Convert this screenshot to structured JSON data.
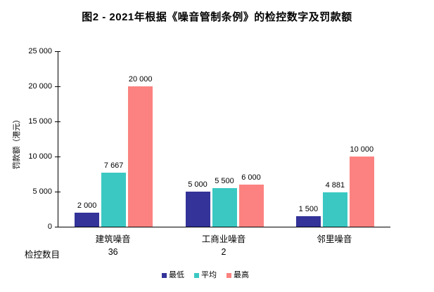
{
  "title": "图2 - 2021年根据《噪音管制条例》的检控数字及罚款额",
  "chart_data": {
    "type": "bar",
    "title": "图2 - 2021年根据《噪音管制条例》的检控数字及罚款额",
    "xlabel": "",
    "ylabel": "罚款额（港元）",
    "ylim": [
      0,
      25000
    ],
    "ytick_step": 5000,
    "ytick_labels": [
      "0",
      "5 000",
      "10 000",
      "15 000",
      "20 000",
      "25 000"
    ],
    "grid": false,
    "legend_position": "bottom",
    "categories": [
      "建筑噪音",
      "工商业噪音",
      "邻里噪音"
    ],
    "series": [
      {
        "name": "最低",
        "color": "#333399",
        "values": [
          2000,
          5000,
          1500
        ],
        "labels": [
          "2 000",
          "5 000",
          "1 500"
        ]
      },
      {
        "name": "平均",
        "color": "#3BC8C3",
        "values": [
          7667,
          5500,
          4881
        ],
        "labels": [
          "7 667",
          "5 500",
          "4 881"
        ]
      },
      {
        "name": "最高",
        "color": "#FB8280",
        "values": [
          20000,
          6000,
          10000
        ],
        "labels": [
          "20 000",
          "6 000",
          "10 000"
        ]
      }
    ],
    "prosecutions_row": {
      "label": "检控数目",
      "values": [
        "36",
        "2",
        ""
      ]
    }
  }
}
